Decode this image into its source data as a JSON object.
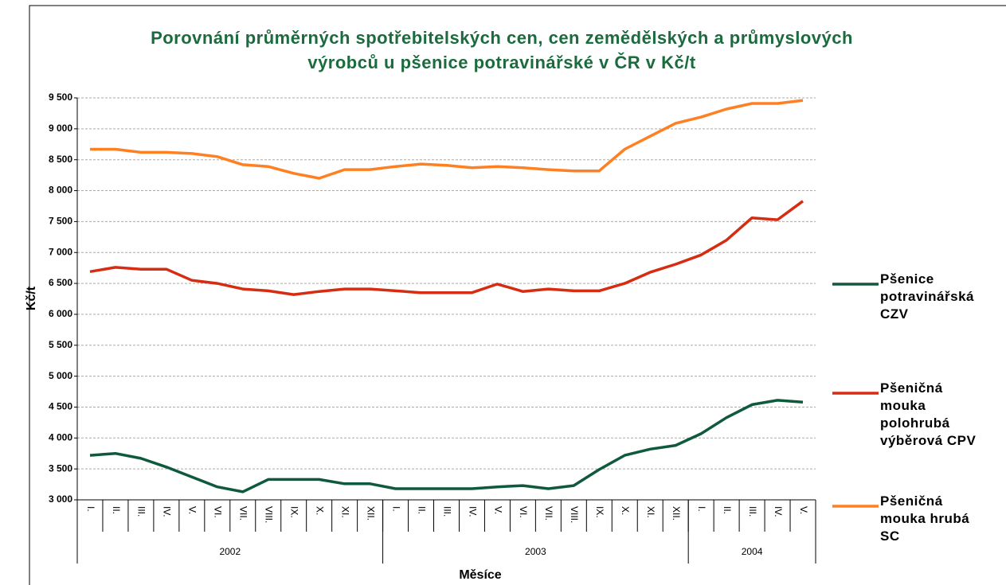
{
  "chart_data": {
    "type": "line",
    "title": "Porovnání průměrných spotřebitelských cen, cen zemědělských a průmyslových výrobců u pšenice potravinářské v ČR v Kč/t",
    "x_label": "Měsíce",
    "y_label": "Kč/t",
    "categories": [
      "I.",
      "II.",
      "III.",
      "IV.",
      "V.",
      "VI.",
      "VII.",
      "VIII.",
      "IX.",
      "X.",
      "XI.",
      "XII.",
      "I.",
      "II.",
      "III.",
      "IV.",
      "V.",
      "VI.",
      "VII.",
      "VIII.",
      "IX.",
      "X.",
      "XI.",
      "XII.",
      "I.",
      "II.",
      "III.",
      "IV.",
      "V."
    ],
    "x_groups": [
      {
        "label": "2002",
        "span": 12
      },
      {
        "label": "2003",
        "span": 12
      },
      {
        "label": "2004",
        "span": 5
      }
    ],
    "series": [
      {
        "name": "Pšenice potravinářská CZV",
        "color": "#0f5a3c",
        "values": [
          3720,
          3750,
          3670,
          3530,
          3370,
          3210,
          3130,
          3330,
          3330,
          3330,
          3260,
          3260,
          3180,
          3180,
          3180,
          3180,
          3210,
          3230,
          3180,
          3230,
          3490,
          3720,
          3820,
          3880,
          4070,
          4330,
          4540,
          4610,
          4580
        ]
      },
      {
        "name": "Pšeničná mouka polohrubá výběrová CPV",
        "color": "#d62d12",
        "values": [
          6690,
          6760,
          6730,
          6730,
          6550,
          6500,
          6410,
          6380,
          6320,
          6370,
          6410,
          6410,
          6380,
          6350,
          6350,
          6350,
          6490,
          6370,
          6410,
          6380,
          6380,
          6500,
          6680,
          6810,
          6960,
          7200,
          7560,
          7530,
          7830
        ]
      },
      {
        "name": "Pšeničná mouka hrubá SC",
        "color": "#ff8022",
        "values": [
          8670,
          8670,
          8620,
          8620,
          8600,
          8550,
          8420,
          8390,
          8280,
          8200,
          8340,
          8340,
          8390,
          8430,
          8410,
          8370,
          8390,
          8370,
          8340,
          8320,
          8320,
          8670,
          8880,
          9090,
          9190,
          9320,
          9410,
          9410,
          9460
        ]
      }
    ],
    "ylim": [
      3000,
      9500
    ],
    "yticks": [
      {
        "value": 3000,
        "label": "3 000"
      },
      {
        "value": 3500,
        "label": "3 500"
      },
      {
        "value": 4000,
        "label": "4 000"
      },
      {
        "value": 4500,
        "label": "4 500"
      },
      {
        "value": 5000,
        "label": "5 000"
      },
      {
        "value": 5500,
        "label": "5 500"
      },
      {
        "value": 6000,
        "label": "6 000"
      },
      {
        "value": 6500,
        "label": "6 500"
      },
      {
        "value": 7000,
        "label": "7 000"
      },
      {
        "value": 7500,
        "label": "7 500"
      },
      {
        "value": 8000,
        "label": "8 000"
      },
      {
        "value": 8500,
        "label": "8 500"
      },
      {
        "value": 9000,
        "label": "9 000"
      },
      {
        "value": 9500,
        "label": "9 500"
      }
    ],
    "grid": true,
    "legend": "right"
  }
}
